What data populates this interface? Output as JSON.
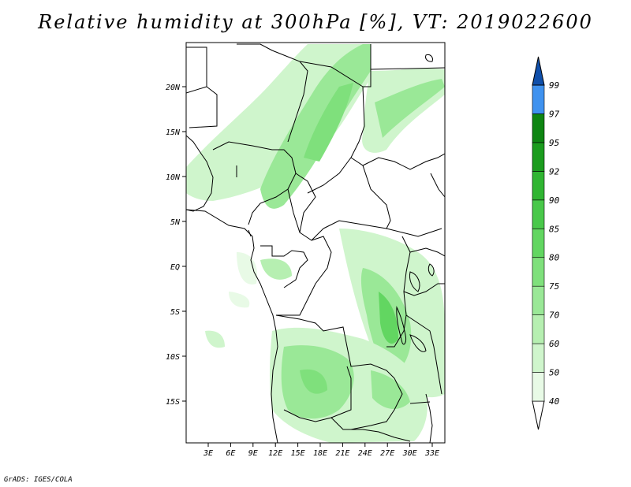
{
  "title": "Relative humidity at 300hPa [%], VT: 2019022600",
  "credit": "GrADS: IGES/COLA",
  "map": {
    "lat_ticks": [
      "20N",
      "15N",
      "10N",
      "5N",
      "EQ",
      "5S",
      "10S",
      "15S"
    ],
    "lon_ticks": [
      "3E",
      "6E",
      "9E",
      "12E",
      "15E",
      "18E",
      "21E",
      "24E",
      "27E",
      "30E",
      "33E"
    ]
  },
  "colorbar": {
    "levels": [
      "40",
      "50",
      "60",
      "70",
      "75",
      "80",
      "85",
      "90",
      "92",
      "95",
      "97",
      "99"
    ],
    "colors": [
      "#e8fae6",
      "#cff5cc",
      "#b6efb1",
      "#9ae897",
      "#7fe07c",
      "#62d661",
      "#49c84a",
      "#30b532",
      "#1b9c1e",
      "#0e8512",
      "#3f92ef",
      "#1c6fd6",
      "#0f4faa"
    ],
    "undercolor": "#ffffff"
  }
}
